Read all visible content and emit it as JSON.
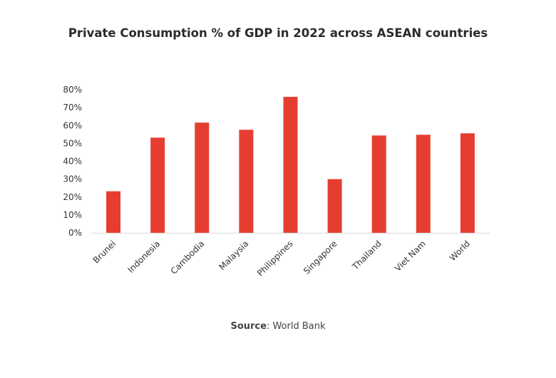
{
  "chart_data": {
    "type": "bar",
    "title": "Private Consumption % of GDP in 2022 across ASEAN countries",
    "categories": [
      "Brunei",
      "Indonesia",
      "Cambodia",
      "Malaysia",
      "Philippines",
      "Singapore",
      "Thailand",
      "Viet Nam",
      "World"
    ],
    "values": [
      23.2,
      53.2,
      61.6,
      57.6,
      76.0,
      30.0,
      54.4,
      54.8,
      55.6
    ],
    "ylim": [
      0,
      80
    ],
    "yticks": [
      "0%",
      "10%",
      "20%",
      "30%",
      "40%",
      "50%",
      "60%",
      "70%",
      "80%"
    ],
    "xlabel": "",
    "ylabel": "",
    "grid": false,
    "bar_color": "#e53e30",
    "source_label": "Source",
    "source_text": ": World Bank"
  }
}
